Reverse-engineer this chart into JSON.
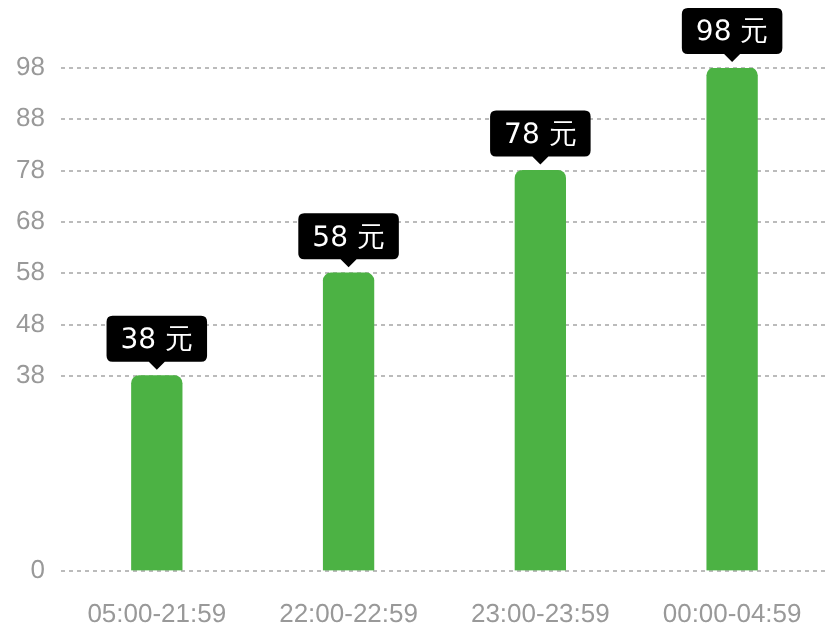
{
  "chart_data": {
    "type": "bar",
    "categories": [
      "05:00-21:59",
      "22:00-22:59",
      "23:00-23:59",
      "00:00-04:59"
    ],
    "values": [
      38,
      58,
      78,
      98
    ],
    "color": "#4cb244",
    "value_labels": [
      "38 元",
      "58 元",
      "78 元",
      "98 元"
    ],
    "ylim": [
      0,
      98
    ],
    "yticks": [
      0,
      38,
      48,
      58,
      68,
      78,
      88,
      98
    ],
    "grid": "y",
    "legend": false
  }
}
